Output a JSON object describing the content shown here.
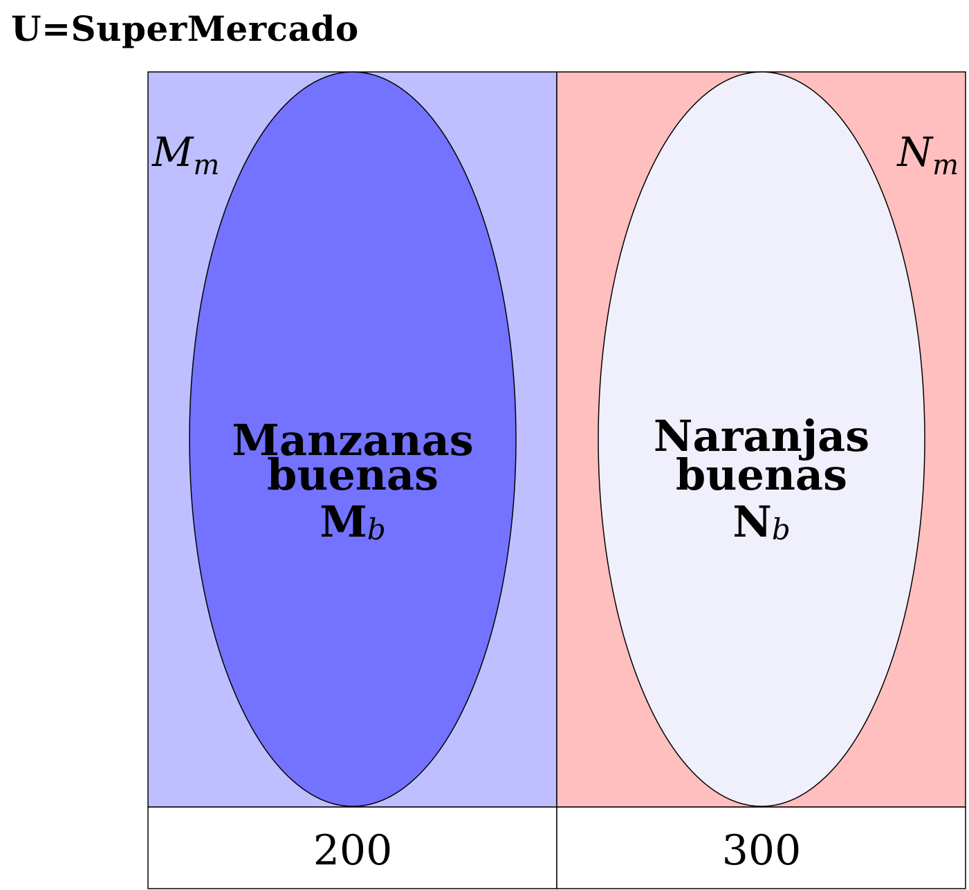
{
  "title": "U=SuperMercado",
  "colors": {
    "apples_region": "#bfbfff",
    "apples_good": "#7373ff",
    "oranges_region": "#ffbfbf",
    "oranges_good": "#f0f0fc",
    "outline": "#000000"
  },
  "regions": {
    "apples": {
      "outer_label": "M",
      "outer_label_sub": "m",
      "inner_line1": "Manzanas",
      "inner_line2": "buenas",
      "inner_symbol": "M",
      "inner_symbol_sub": "b",
      "count": "200"
    },
    "oranges": {
      "outer_label": "N",
      "outer_label_sub": "m",
      "inner_line1": "Naranjas",
      "inner_line2": "buenas",
      "inner_symbol": "N",
      "inner_symbol_sub": "b",
      "count": "300"
    }
  }
}
